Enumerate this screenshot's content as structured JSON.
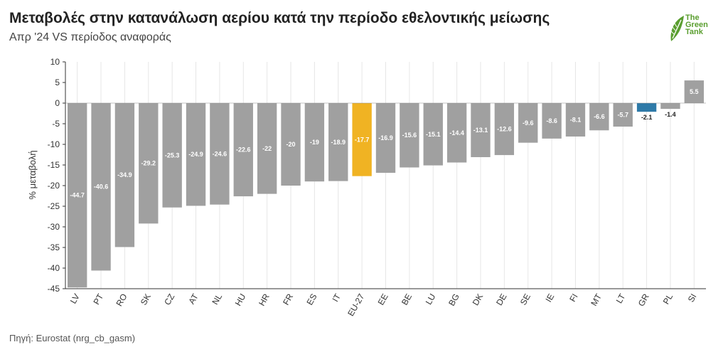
{
  "header": {
    "title": "Μεταβολές στην κατανάλωση αερίου κατά την περίοδο εθελοντικής μείωσης",
    "subtitle": "Απρ '24 VS περίοδος αναφοράς"
  },
  "footer": {
    "source": "Πηγή: Eurostat (nrg_cb_gasm)"
  },
  "logo": {
    "line1": "The",
    "line2": "Green",
    "line3": "Tank",
    "color": "#5a9e2f"
  },
  "colors": {
    "default_bar": "#a0a0a0",
    "highlight_eu": "#f0b323",
    "highlight_gr": "#2e7aa8",
    "grid": "#e6e6e6",
    "axis": "#333333"
  },
  "chart_data": {
    "type": "bar",
    "ylabel": "% μεταβολή",
    "xlabel": "",
    "ylim": [
      -45,
      10
    ],
    "yticks": [
      10,
      5,
      0,
      -5,
      -10,
      -15,
      -20,
      -25,
      -30,
      -35,
      -40,
      -45
    ],
    "grid": "vertical",
    "categories": [
      "LV",
      "PT",
      "RO",
      "SK",
      "CZ",
      "AT",
      "NL",
      "HU",
      "HR",
      "FR",
      "ES",
      "IT",
      "EU-27",
      "EE",
      "BE",
      "LU",
      "BG",
      "DK",
      "DE",
      "SE",
      "IE",
      "FI",
      "MT",
      "LT",
      "GR",
      "PL",
      "SI"
    ],
    "values": [
      -44.7,
      -40.6,
      -34.9,
      -29.2,
      -25.3,
      -24.9,
      -24.6,
      -22.6,
      -22,
      -20,
      -19,
      -18.9,
      -17.7,
      -16.9,
      -15.6,
      -15.1,
      -14.4,
      -13.1,
      -12.6,
      -9.6,
      -8.6,
      -8.1,
      -6.6,
      -5.7,
      -2.1,
      -1.4,
      5.5
    ],
    "highlights": {
      "EU-27": "#f0b323",
      "GR": "#2e7aa8"
    }
  }
}
